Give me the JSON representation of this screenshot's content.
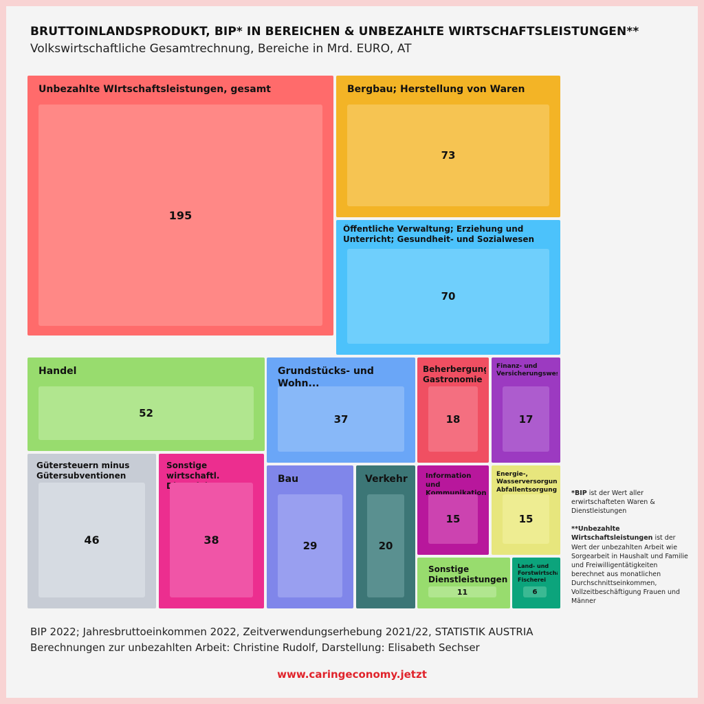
{
  "title": "BRUTTOINLANDSPRODUKT, BIP* IN BEREICHEN & UNBEZAHLTE WIRTSCHAFTSLEISTUNGEN**",
  "subtitle": "Volkswirtschaftliche Gesamtrechnung, Bereiche in Mrd. EURO, AT",
  "chart_data": {
    "type": "treemap",
    "items": [
      {
        "label": "Unbezahlte WIrtschaftsleistungen, gesamt",
        "value": 195,
        "color": "#ff6b6b",
        "inner_color": "#ff8886"
      },
      {
        "label": "Bergbau; Herstellung von Waren",
        "value": 73,
        "color": "#f3b426",
        "inner_color": "#f6c452"
      },
      {
        "label": "Öffentliche Verwaltung; Erziehung und\nUnterricht; Gesundheit- und Sozialwesen",
        "value": 70,
        "color": "#4cc2fb",
        "inner_color": "#6fcffc"
      },
      {
        "label": "Handel",
        "value": 52,
        "color": "#98dc6e",
        "inner_color": "#b1e68f"
      },
      {
        "label": "Grundstücks- und Wohn...",
        "value": 37,
        "color": "#6aa6f7",
        "inner_color": "#88b8f8"
      },
      {
        "label": "Beherbergung,\nGastronomie",
        "value": 18,
        "color": "#f04f62",
        "inner_color": "#f46f80"
      },
      {
        "label": "Finanz- und\nVersicherungswesen",
        "value": 17,
        "color": "#9c3ac1",
        "inner_color": "#ad5cce"
      },
      {
        "label": "Gütersteuern minus\nGütersubventionen",
        "value": 46,
        "color": "#c7ccd5",
        "inner_color": "#d6dbe2"
      },
      {
        "label": "Sonstige wirtschaftl.\nDienstleistungen",
        "value": 38,
        "color": "#ec2e8f",
        "inner_color": "#f055a7"
      },
      {
        "label": "Bau",
        "value": 29,
        "color": "#8086ea",
        "inner_color": "#999ff0"
      },
      {
        "label": "Verkehr",
        "value": 20,
        "color": "#3c7676",
        "inner_color": "#5a9090"
      },
      {
        "label": "Information und\nKommunikation",
        "value": 15,
        "color": "#b8179c",
        "inner_color": "#cc43b0"
      },
      {
        "label": "Energie-,\nWasserversorgung;\nAbfallentsorgung",
        "value": 15,
        "color": "#e7e67d",
        "inner_color": "#eeed92"
      },
      {
        "label": "Sonstige\nDienstleistungen",
        "value": 11,
        "color": "#98dc6e",
        "inner_color": "#b1e68f"
      },
      {
        "label": "Land- und\nForstwirtschaft,\nFischerei",
        "value": 6,
        "color": "#0ca47c",
        "inner_color": "#3bb993"
      }
    ]
  },
  "notes": {
    "bip_term": "*BIP",
    "bip_text": " ist der Wert aller erwirtschafteten Waren & Dienstleistungen",
    "unpaid_term": "**Unbezahlte Wirtschaftsleistungen",
    "unpaid_text": " ist der Wert der unbezahlten Arbeit wie Sorgearbeit in Haushalt und Familie und Freiwilligentätigkeiten berechnet aus monatlichen Durchschnittseinkommen, Vollzeitbeschäftigung Frauen und Männer"
  },
  "source_line1": "BIP 2022; Jahresbruttoeinkommen 2022, Zeitverwendungserhebung 2021/22, STATISTIK AUSTRIA",
  "source_line2": "Berechnungen zur unbezahlten Arbeit: Christine Rudolf, Darstellung: Elisabeth Sechser",
  "website": "www.caringeconomy.jetzt"
}
